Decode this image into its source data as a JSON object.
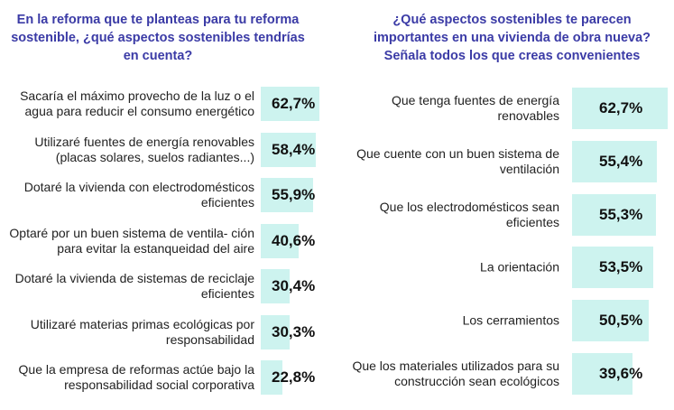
{
  "chart_data": [
    {
      "type": "bar",
      "orientation": "horizontal",
      "title": "En la reforma que te planteas para tu reforma sostenible, ¿qué aspectos sostenibles tendrías en cuenta?",
      "categories": [
        "Sacaría el máximo provecho de la luz o el agua para reducir el consumo energético",
        "Utilizaré fuentes de energía renovables (placas solares, suelos radiantes...)",
        "Dotaré la vivienda con electrodomésticos eficientes",
        "Optaré por un buen sistema de ventila- ción para evitar la estanqueidad del aire",
        "Dotaré la vivienda de sistemas de reciclaje eficientes",
        "Utilizaré materias primas ecológicas por responsabilidad",
        "Que la empresa de reformas actúe bajo la responsabilidad social corporativa"
      ],
      "values": [
        62.7,
        58.4,
        55.9,
        40.6,
        30.4,
        30.3,
        22.8
      ],
      "labels": [
        "62,7%",
        "58,4%",
        "55,9%",
        "40,6%",
        "30,4%",
        "30,3%",
        "22,8%"
      ],
      "bar_color": "#cdf3ef",
      "title_color": "#3b3ba6"
    },
    {
      "type": "bar",
      "orientation": "horizontal",
      "title": "¿Qué aspectos sostenibles te parecen importantes en una vivienda de obra nueva? Señala todos los que creas convenientes",
      "categories": [
        "Que tenga fuentes de energía renovables",
        "Que cuente con un buen sistema de ventilación",
        "Que los electrodomésticos sean eficientes",
        "La orientación",
        "Los cerramientos",
        "Que los materiales utilizados para su construcción sean ecológicos"
      ],
      "values": [
        62.7,
        55.4,
        55.3,
        53.5,
        50.5,
        39.6
      ],
      "labels": [
        "62,7%",
        "55,4%",
        "55,3%",
        "53,5%",
        "50,5%",
        "39,6%"
      ],
      "bar_color": "#cdf3ef",
      "title_color": "#3b3ba6"
    }
  ]
}
